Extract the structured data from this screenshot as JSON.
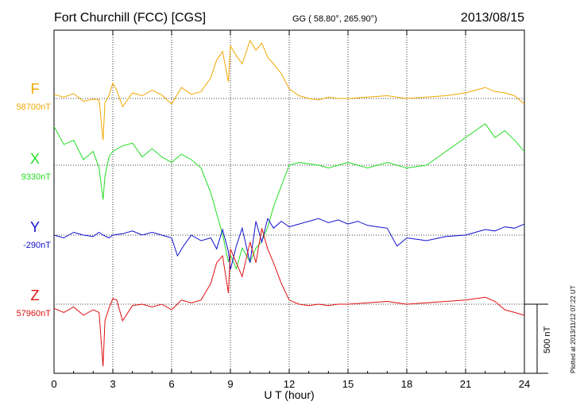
{
  "header": {
    "station": "Fort Churchill (FCC)  [CGS]",
    "coords": "GG ( 58.80°, 265.90°)",
    "date": "2013/08/15"
  },
  "footer": {
    "plotted": "Plotted at 2013/11/12 07:22 UT"
  },
  "chart_data": {
    "type": "line",
    "title": "Fort Churchill (FCC)  [CGS]",
    "xlabel": "U T (hour)",
    "xlim": [
      0,
      24
    ],
    "x_ticks": [
      "0",
      "3",
      "6",
      "9",
      "12",
      "15",
      "18",
      "21",
      "24"
    ],
    "grid": true,
    "scale_bar": {
      "label": "500 nT",
      "value": 500
    },
    "series": [
      {
        "name": "F",
        "baseline_label": "58700nT",
        "color": "#f0a800",
        "x": [
          0,
          0.5,
          1,
          1.5,
          2,
          2.3,
          2.5,
          2.6,
          2.8,
          3,
          3.2,
          3.5,
          4,
          4.5,
          5,
          5.5,
          6,
          6.5,
          7,
          7.5,
          8,
          8.3,
          8.6,
          8.9,
          9,
          9.3,
          9.6,
          10,
          10.3,
          10.6,
          10.9,
          11.2,
          11.6,
          12,
          12.5,
          13,
          13.5,
          14,
          14.5,
          15,
          16,
          17,
          18,
          19,
          20,
          21,
          21.5,
          22,
          22.5,
          23,
          23.5,
          24
        ],
        "values": [
          30,
          10,
          35,
          -20,
          -5,
          -10,
          -300,
          -30,
          20,
          110,
          60,
          -60,
          40,
          20,
          60,
          25,
          -40,
          80,
          30,
          50,
          150,
          280,
          340,
          120,
          380,
          310,
          250,
          420,
          350,
          400,
          300,
          250,
          180,
          70,
          20,
          0,
          -10,
          10,
          0,
          0,
          10,
          20,
          0,
          10,
          20,
          40,
          60,
          80,
          50,
          40,
          20,
          -40
        ]
      },
      {
        "name": "X",
        "baseline_label": "9330nT",
        "color": "#22dd22",
        "x": [
          0,
          0.5,
          1,
          1.5,
          2,
          2.3,
          2.5,
          2.6,
          2.8,
          3,
          3.5,
          4,
          4.5,
          5,
          5.5,
          6,
          6.5,
          7,
          7.5,
          8,
          8.3,
          8.6,
          8.9,
          9,
          9.3,
          9.6,
          10,
          10.3,
          10.6,
          10.9,
          11.2,
          11.6,
          12,
          12.5,
          13,
          13.5,
          14,
          14.5,
          15,
          16,
          17,
          18,
          19,
          20,
          21,
          21.5,
          22,
          22.5,
          23,
          23.5,
          24
        ],
        "values": [
          280,
          150,
          180,
          40,
          100,
          -20,
          -250,
          -80,
          60,
          100,
          140,
          160,
          60,
          120,
          60,
          20,
          80,
          40,
          -20,
          -200,
          -350,
          -500,
          -700,
          -650,
          -750,
          -600,
          -700,
          -600,
          -550,
          -450,
          -300,
          -150,
          0,
          20,
          10,
          0,
          -20,
          0,
          20,
          -20,
          20,
          -20,
          0,
          100,
          200,
          250,
          300,
          200,
          250,
          180,
          100
        ]
      },
      {
        "name": "Y",
        "baseline_label": "-290nT",
        "color": "#1010d0",
        "x": [
          0,
          0.5,
          1,
          1.5,
          2,
          2.3,
          2.5,
          2.8,
          3,
          3.5,
          4,
          4.5,
          5,
          5.5,
          6,
          6.3,
          6.6,
          7,
          7.5,
          8,
          8.3,
          8.6,
          8.9,
          9,
          9.3,
          9.6,
          10,
          10.3,
          10.6,
          10.9,
          11.2,
          11.6,
          12,
          12.5,
          13,
          13.5,
          14,
          14.5,
          15,
          15.5,
          16,
          16.5,
          17,
          17.5,
          18,
          19,
          20,
          21,
          21.5,
          22,
          22.5,
          23,
          23.5,
          24
        ],
        "values": [
          0,
          -20,
          20,
          0,
          -10,
          20,
          0,
          -20,
          0,
          10,
          30,
          0,
          20,
          0,
          -20,
          -150,
          -80,
          0,
          -40,
          -20,
          -100,
          40,
          -120,
          -250,
          -80,
          50,
          -200,
          100,
          -50,
          120,
          50,
          100,
          60,
          80,
          100,
          120,
          90,
          110,
          80,
          100,
          70,
          60,
          50,
          -80,
          -20,
          -40,
          -10,
          0,
          20,
          40,
          30,
          60,
          50,
          80
        ]
      },
      {
        "name": "Z",
        "baseline_label": "57960nT",
        "color": "#e01010",
        "x": [
          0,
          0.5,
          1,
          1.5,
          2,
          2.3,
          2.5,
          2.6,
          2.8,
          3,
          3.2,
          3.5,
          4,
          4.5,
          5,
          5.5,
          6,
          6.5,
          7,
          7.5,
          8,
          8.3,
          8.6,
          8.9,
          9,
          9.3,
          9.6,
          10,
          10.3,
          10.6,
          10.9,
          11.2,
          11.6,
          12,
          12.5,
          13,
          13.5,
          14,
          14.5,
          15,
          16,
          17,
          18,
          19,
          20,
          21,
          21.5,
          22,
          22.5,
          23,
          23.5,
          24
        ],
        "values": [
          -30,
          -60,
          -20,
          -80,
          -40,
          -60,
          -450,
          -120,
          -30,
          40,
          30,
          -120,
          -10,
          0,
          -20,
          0,
          -40,
          30,
          10,
          30,
          150,
          300,
          350,
          80,
          400,
          300,
          200,
          450,
          300,
          550,
          400,
          300,
          150,
          30,
          0,
          -10,
          0,
          -10,
          0,
          0,
          10,
          20,
          0,
          10,
          20,
          30,
          40,
          50,
          20,
          -40,
          -60,
          -80
        ]
      }
    ]
  }
}
